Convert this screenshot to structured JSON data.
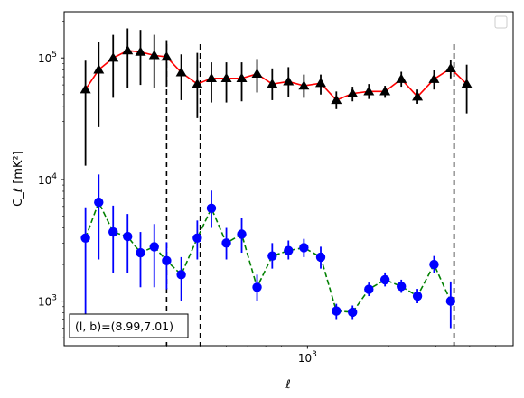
{
  "chart_data": {
    "type": "line",
    "title": "",
    "xlabel": "ℓ",
    "ylabel": "C_ℓ [mK²]",
    "xscale": "log",
    "yscale": "log",
    "xlim": [
      125,
      5800
    ],
    "ylim": [
      430,
      240000
    ],
    "x_tick_labels": [
      "10^3"
    ],
    "y_tick_labels": [
      "10^3",
      "10^4",
      "10^5"
    ],
    "grid": false,
    "legend": {
      "placement": "top-right",
      "entries": []
    },
    "annotation": "(l, b)=(8.99,7.01)",
    "vlines": [
      300,
      400,
      3500
    ],
    "series": [
      {
        "marker": "triangle",
        "line_color": "#ff0000",
        "line_style": "solid",
        "marker_color": "#000000",
        "errorbar_color": "#000000",
        "points": [
          {
            "x": 150,
            "y": 55000,
            "lo": 13000,
            "hi": 95000
          },
          {
            "x": 168,
            "y": 80000,
            "lo": 27000,
            "hi": 135000
          },
          {
            "x": 190,
            "y": 100000,
            "lo": 47000,
            "hi": 155000
          },
          {
            "x": 215,
            "y": 115000,
            "lo": 57000,
            "hi": 175000
          },
          {
            "x": 240,
            "y": 112000,
            "lo": 60000,
            "hi": 170000
          },
          {
            "x": 270,
            "y": 105000,
            "lo": 57000,
            "hi": 155000
          },
          {
            "x": 300,
            "y": 102000,
            "lo": 58000,
            "hi": 140000
          },
          {
            "x": 340,
            "y": 76000,
            "lo": 45000,
            "hi": 107000
          },
          {
            "x": 390,
            "y": 61000,
            "lo": 32000,
            "hi": 110000
          },
          {
            "x": 440,
            "y": 68000,
            "lo": 43000,
            "hi": 92000
          },
          {
            "x": 500,
            "y": 68000,
            "lo": 43000,
            "hi": 92000
          },
          {
            "x": 570,
            "y": 68000,
            "lo": 44000,
            "hi": 92000
          },
          {
            "x": 650,
            "y": 74000,
            "lo": 52000,
            "hi": 98000
          },
          {
            "x": 740,
            "y": 61000,
            "lo": 45000,
            "hi": 82000
          },
          {
            "x": 850,
            "y": 64000,
            "lo": 48000,
            "hi": 84000
          },
          {
            "x": 970,
            "y": 59000,
            "lo": 47000,
            "hi": 73000
          },
          {
            "x": 1120,
            "y": 62000,
            "lo": 50000,
            "hi": 73000
          },
          {
            "x": 1280,
            "y": 45000,
            "lo": 38000,
            "hi": 53000
          },
          {
            "x": 1470,
            "y": 51000,
            "lo": 44000,
            "hi": 58000
          },
          {
            "x": 1690,
            "y": 53000,
            "lo": 46000,
            "hi": 61000
          },
          {
            "x": 1940,
            "y": 53000,
            "lo": 47000,
            "hi": 59000
          },
          {
            "x": 2230,
            "y": 67000,
            "lo": 58000,
            "hi": 77000
          },
          {
            "x": 2560,
            "y": 48000,
            "lo": 42000,
            "hi": 55000
          },
          {
            "x": 2950,
            "y": 67000,
            "lo": 55000,
            "hi": 79000
          },
          {
            "x": 3400,
            "y": 82000,
            "lo": 68000,
            "hi": 96000
          },
          {
            "x": 3900,
            "y": 61000,
            "lo": 35000,
            "hi": 88000
          }
        ]
      },
      {
        "marker": "circle",
        "line_color": "#008000",
        "line_style": "dashed",
        "marker_color": "#0000ff",
        "errorbar_color": "#0000ff",
        "points": [
          {
            "x": 150,
            "y": 3300,
            "lo": 760,
            "hi": 5900
          },
          {
            "x": 168,
            "y": 6500,
            "lo": 2200,
            "hi": 11000
          },
          {
            "x": 190,
            "y": 3700,
            "lo": 1700,
            "hi": 6100
          },
          {
            "x": 215,
            "y": 3400,
            "lo": 1700,
            "hi": 5200
          },
          {
            "x": 240,
            "y": 2500,
            "lo": 1300,
            "hi": 3700
          },
          {
            "x": 270,
            "y": 2800,
            "lo": 1300,
            "hi": 4300
          },
          {
            "x": 300,
            "y": 2150,
            "lo": 1250,
            "hi": 3050
          },
          {
            "x": 340,
            "y": 1650,
            "lo": 1000,
            "hi": 2300
          },
          {
            "x": 390,
            "y": 3300,
            "lo": 2200,
            "hi": 4600
          },
          {
            "x": 440,
            "y": 5800,
            "lo": 4000,
            "hi": 8100
          },
          {
            "x": 500,
            "y": 3000,
            "lo": 2200,
            "hi": 4000
          },
          {
            "x": 570,
            "y": 3550,
            "lo": 2500,
            "hi": 4800
          },
          {
            "x": 650,
            "y": 1300,
            "lo": 1000,
            "hi": 1650
          },
          {
            "x": 740,
            "y": 2350,
            "lo": 1850,
            "hi": 3000
          },
          {
            "x": 850,
            "y": 2600,
            "lo": 2200,
            "hi": 3150
          },
          {
            "x": 970,
            "y": 2750,
            "lo": 2300,
            "hi": 3250
          },
          {
            "x": 1120,
            "y": 2300,
            "lo": 1850,
            "hi": 2800
          },
          {
            "x": 1280,
            "y": 830,
            "lo": 700,
            "hi": 950
          },
          {
            "x": 1470,
            "y": 810,
            "lo": 700,
            "hi": 920
          },
          {
            "x": 1690,
            "y": 1250,
            "lo": 1100,
            "hi": 1420
          },
          {
            "x": 1940,
            "y": 1500,
            "lo": 1320,
            "hi": 1720
          },
          {
            "x": 2230,
            "y": 1320,
            "lo": 1170,
            "hi": 1500
          },
          {
            "x": 2560,
            "y": 1100,
            "lo": 960,
            "hi": 1260
          },
          {
            "x": 2950,
            "y": 2000,
            "lo": 1700,
            "hi": 2350
          },
          {
            "x": 3400,
            "y": 1000,
            "lo": 600,
            "hi": 1450
          }
        ]
      }
    ]
  }
}
